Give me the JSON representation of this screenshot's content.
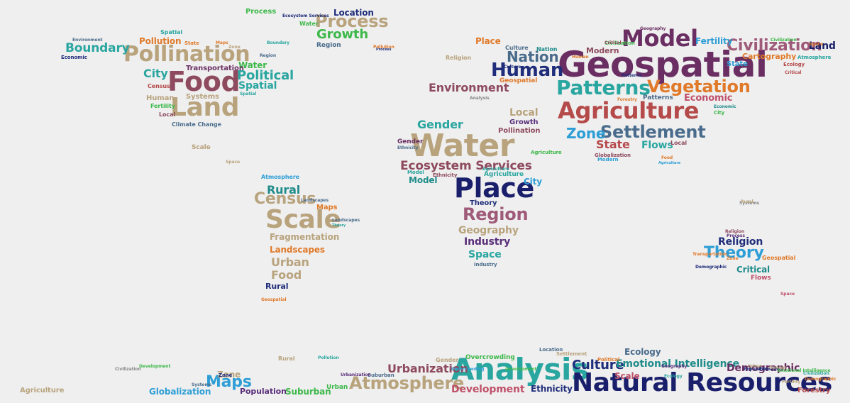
{
  "palette": {
    "tan": "#b8a37d",
    "tan_dark": "#a8986f",
    "navy": "#1f2d7a",
    "navy_dark": "#1a1f6b",
    "mauve": "#9e5a78",
    "wine": "#8e4a5e",
    "plum": "#6a2e63",
    "purple": "#5a2f7a",
    "rose": "#c0506a",
    "red_brown": "#b54a4a",
    "green": "#3db84a",
    "teal": "#2aa6a0",
    "teal_dark": "#1f8c8a",
    "sky": "#2e9ed6",
    "slate": "#4a6c8c",
    "orange": "#e07a2a",
    "gray": "#888888"
  },
  "words": [
    {
      "text": "Geospatial",
      "color": "plum"
    },
    {
      "text": "Water",
      "color": "tan"
    },
    {
      "text": "Place",
      "color": "navy_dark"
    },
    {
      "text": "Agriculture",
      "color": "red_brown"
    },
    {
      "text": "Model",
      "color": "plum"
    },
    {
      "text": "Human",
      "color": "navy"
    },
    {
      "text": "Nation",
      "color": "slate"
    },
    {
      "text": "Patterns",
      "color": "teal"
    },
    {
      "text": "Vegetation",
      "color": "orange"
    },
    {
      "text": "Settlement",
      "color": "slate"
    },
    {
      "text": "Zone",
      "color": "sky"
    },
    {
      "text": "Civilization",
      "color": "mauve"
    },
    {
      "text": "Land",
      "color": "navy_dark"
    },
    {
      "text": "Fertility",
      "color": "sky"
    },
    {
      "text": "Cartography",
      "color": "orange"
    },
    {
      "text": "State",
      "color": "sky"
    },
    {
      "text": "Economic",
      "color": "rose"
    },
    {
      "text": "Environment",
      "color": "wine"
    },
    {
      "text": "Gender",
      "color": "teal"
    },
    {
      "text": "Ecosystem Services",
      "color": "wine"
    },
    {
      "text": "Region",
      "color": "mauve"
    },
    {
      "text": "Geography",
      "color": "tan"
    },
    {
      "text": "Industry",
      "color": "purple"
    },
    {
      "text": "Space",
      "color": "teal"
    },
    {
      "text": "City",
      "color": "sky"
    },
    {
      "text": "Model",
      "color": "teal_dark"
    },
    {
      "text": "Theory",
      "color": "navy"
    },
    {
      "text": "Local",
      "color": "tan"
    },
    {
      "text": "Growth",
      "color": "purple"
    },
    {
      "text": "Pollination",
      "color": "wine"
    },
    {
      "text": "State",
      "color": "red_brown"
    },
    {
      "text": "Flows",
      "color": "teal"
    },
    {
      "text": "Food",
      "color": "wine"
    },
    {
      "text": "Land",
      "color": "tan"
    },
    {
      "text": "Pollination",
      "color": "tan"
    },
    {
      "text": "Boundary",
      "color": "teal"
    },
    {
      "text": "City",
      "color": "teal"
    },
    {
      "text": "Political",
      "color": "teal"
    },
    {
      "text": "Water",
      "color": "green"
    },
    {
      "text": "Spatial",
      "color": "teal"
    },
    {
      "text": "Process",
      "color": "tan"
    },
    {
      "text": "Growth",
      "color": "green"
    },
    {
      "text": "Location",
      "color": "navy"
    },
    {
      "text": "Pollution",
      "color": "orange"
    },
    {
      "text": "Census",
      "color": "tan"
    },
    {
      "text": "Scale",
      "color": "tan"
    },
    {
      "text": "Rural",
      "color": "teal_dark"
    },
    {
      "text": "Fragmentation",
      "color": "tan"
    },
    {
      "text": "Landscapes",
      "color": "orange"
    },
    {
      "text": "Urban",
      "color": "tan"
    },
    {
      "text": "Food",
      "color": "tan"
    },
    {
      "text": "Rural",
      "color": "navy"
    },
    {
      "text": "Maps",
      "color": "orange"
    },
    {
      "text": "Religion",
      "color": "navy"
    },
    {
      "text": "Theory",
      "color": "sky"
    },
    {
      "text": "Critical",
      "color": "teal_dark"
    },
    {
      "text": "Flows",
      "color": "rose"
    },
    {
      "text": "Analysis",
      "color": "teal"
    },
    {
      "text": "Natural Resources",
      "color": "navy_dark"
    },
    {
      "text": "Atmosphere",
      "color": "tan"
    },
    {
      "text": "Urbanization",
      "color": "wine"
    },
    {
      "text": "Culture",
      "color": "navy"
    },
    {
      "text": "Emotional Intelligence",
      "color": "teal_dark"
    },
    {
      "text": "Demographic",
      "color": "plum"
    },
    {
      "text": "Development",
      "color": "rose"
    },
    {
      "text": "Maps",
      "color": "sky"
    },
    {
      "text": "Zone",
      "color": "tan"
    },
    {
      "text": "Globalization",
      "color": "sky"
    },
    {
      "text": "Population",
      "color": "purple"
    },
    {
      "text": "Suburban",
      "color": "green"
    },
    {
      "text": "Ethnicity",
      "color": "navy"
    },
    {
      "text": "Ecology",
      "color": "slate"
    },
    {
      "text": "Scale",
      "color": "rose"
    },
    {
      "text": "Forestry",
      "color": "red_brown"
    },
    {
      "text": "Overcrowding",
      "color": "green"
    },
    {
      "text": "Agriculture",
      "color": "tan"
    },
    {
      "text": "Transportation",
      "color": "plum"
    },
    {
      "text": "Census",
      "color": "red_brown"
    },
    {
      "text": "Systems",
      "color": "tan"
    },
    {
      "text": "Human",
      "color": "tan"
    },
    {
      "text": "Fertility",
      "color": "green"
    },
    {
      "text": "Local",
      "color": "wine"
    },
    {
      "text": "Climate Change",
      "color": "slate"
    },
    {
      "text": "Scale",
      "color": "tan"
    },
    {
      "text": "Atmosphere",
      "color": "sky"
    },
    {
      "text": "Place",
      "color": "orange"
    },
    {
      "text": "Culture",
      "color": "slate"
    },
    {
      "text": "Religion",
      "color": "tan"
    },
    {
      "text": "Geospatial",
      "color": "orange"
    },
    {
      "text": "Modern",
      "color": "wine"
    },
    {
      "text": "Civilization",
      "color": "green"
    },
    {
      "text": "Analysis",
      "color": "gray"
    },
    {
      "text": "Local",
      "color": "wine"
    },
    {
      "text": "Region",
      "color": "slate"
    },
    {
      "text": "Ecology",
      "color": "red_brown"
    },
    {
      "text": "Political",
      "color": "orange"
    },
    {
      "text": "Gender",
      "color": "tan"
    },
    {
      "text": "Location",
      "color": "slate"
    },
    {
      "text": "Settlement",
      "color": "tan"
    },
    {
      "text": "Rural",
      "color": "tan"
    },
    {
      "text": "Urban",
      "color": "green"
    },
    {
      "text": "Suburban",
      "color": "slate"
    },
    {
      "text": "Zone",
      "color": "navy"
    },
    {
      "text": "Development",
      "color": "green"
    },
    {
      "text": "Civilization",
      "color": "gray"
    },
    {
      "text": "Process",
      "color": "green"
    },
    {
      "text": "Ecosystem Services",
      "color": "navy"
    },
    {
      "text": "Water",
      "color": "green"
    },
    {
      "text": "Region",
      "color": "slate"
    },
    {
      "text": "Economic",
      "color": "navy"
    },
    {
      "text": "Environment",
      "color": "slate"
    },
    {
      "text": "Spatial",
      "color": "teal"
    },
    {
      "text": "State",
      "color": "orange"
    },
    {
      "text": "Process",
      "color": "navy"
    },
    {
      "text": "Religion",
      "color": "wine"
    },
    {
      "text": "Systems",
      "color": "gray"
    },
    {
      "text": "Demographic",
      "color": "navy"
    },
    {
      "text": "Industry",
      "color": "slate"
    },
    {
      "text": "Geospatial",
      "color": "orange"
    },
    {
      "text": "Space",
      "color": "tan"
    },
    {
      "text": "Agriculture",
      "color": "teal"
    },
    {
      "text": "Nation",
      "color": "teal_dark"
    },
    {
      "text": "Pollution",
      "color": "teal"
    },
    {
      "text": "Globalization",
      "color": "wine"
    },
    {
      "text": "Modern",
      "color": "sky"
    },
    {
      "text": "Boundary",
      "color": "teal"
    },
    {
      "text": "Agriculture",
      "color": "sky"
    },
    {
      "text": "Civilization",
      "color": "green"
    },
    {
      "text": "Patterns",
      "color": "slate"
    },
    {
      "text": "Economic",
      "color": "teal_dark"
    },
    {
      "text": "City",
      "color": "green"
    },
    {
      "text": "Ethnicity",
      "color": "wine"
    },
    {
      "text": "Agriculture",
      "color": "green"
    },
    {
      "text": "Landscapes",
      "color": "slate"
    },
    {
      "text": "Theory",
      "color": "teal"
    },
    {
      "text": "Gender",
      "color": "plum"
    },
    {
      "text": "Space",
      "color": "orange"
    },
    {
      "text": "Transportation",
      "color": "orange"
    },
    {
      "text": "Space",
      "color": "rose"
    },
    {
      "text": "Critical",
      "color": "wine"
    },
    {
      "text": "Critical",
      "color": "red_brown"
    },
    {
      "text": "Geography",
      "color": "plum"
    },
    {
      "text": "Atmosphere",
      "color": "teal"
    },
    {
      "text": "Spatial",
      "color": "teal"
    },
    {
      "text": "Culture",
      "color": "navy"
    },
    {
      "text": "Rural",
      "color": "tan"
    },
    {
      "text": "Population",
      "color": "navy"
    },
    {
      "text": "Civilization",
      "color": "teal"
    },
    {
      "text": "Urban",
      "color": "tan"
    },
    {
      "text": "Fertility",
      "color": "tan"
    },
    {
      "text": "Ecology",
      "color": "teal"
    },
    {
      "text": "Urbanization",
      "color": "purple"
    },
    {
      "text": "Economic",
      "color": "navy"
    },
    {
      "text": "Geography",
      "color": "purple"
    },
    {
      "text": "Systems",
      "color": "slate"
    },
    {
      "text": "Process",
      "color": "purple"
    },
    {
      "text": "Geospatial",
      "color": "orange"
    },
    {
      "text": "Maps",
      "color": "orange"
    },
    {
      "text": "Pollution",
      "color": "orange"
    },
    {
      "text": "Forestry",
      "color": "orange"
    },
    {
      "text": "Landscapes",
      "color": "slate"
    },
    {
      "text": "Ethnicity",
      "color": "slate"
    },
    {
      "text": "Model",
      "color": "teal"
    },
    {
      "text": "Zone",
      "color": "orange"
    },
    {
      "text": "Food",
      "color": "orange"
    },
    {
      "text": "Zone",
      "color": "tan"
    },
    {
      "text": "Human",
      "color": "orange"
    },
    {
      "text": "Patterns",
      "color": "navy"
    },
    {
      "text": "Demographic",
      "color": "orange"
    },
    {
      "text": "Overcrowding",
      "color": "sky"
    },
    {
      "text": "Emotional Intelligence",
      "color": "green"
    },
    {
      "text": "Gender",
      "color": "tan"
    },
    {
      "text": "Development",
      "color": "green"
    },
    {
      "text": "Agriculture",
      "color": "teal"
    }
  ]
}
